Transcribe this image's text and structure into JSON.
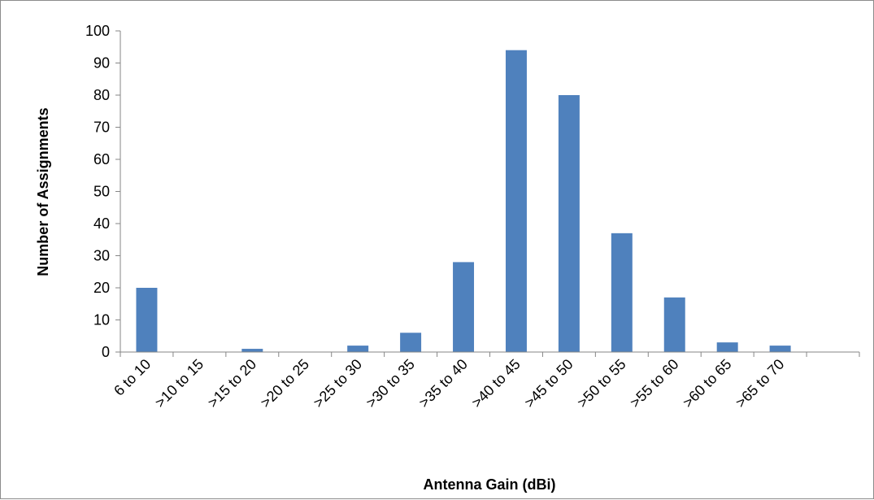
{
  "chart_data": {
    "type": "bar",
    "title": "",
    "xlabel": "Antenna Gain (dBi)",
    "ylabel": "Number of Assignments",
    "categories": [
      "6 to 10",
      ">10 to 15",
      ">15 to 20",
      ">20 to 25",
      ">25 to 30",
      ">30 to 35",
      ">35 to 40",
      ">40 to 45",
      ">45 to 50",
      ">50 to 55",
      ">55 to 60",
      ">60 to 65",
      ">65 to 70",
      ""
    ],
    "series": [
      {
        "values": [
          20,
          0,
          1,
          0,
          2,
          6,
          28,
          94,
          80,
          37,
          17,
          3,
          2,
          0
        ],
        "color": "#4f81bd"
      }
    ],
    "ylim": [
      0,
      100
    ],
    "yticks": [
      0,
      10,
      20,
      30,
      40,
      50,
      60,
      70,
      80,
      90,
      100
    ],
    "grid": false,
    "legend": "none"
  }
}
